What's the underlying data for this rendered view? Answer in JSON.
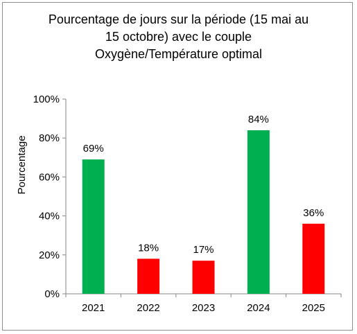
{
  "chart_data": {
    "type": "bar",
    "title_lines": [
      "Pourcentage de jours sur la période (15 mai au",
      "15 octobre) avec le couple",
      "Oxygène/Température optimal"
    ],
    "xlabel": "",
    "ylabel": "Pourcentage",
    "categories": [
      "2021",
      "2022",
      "2023",
      "2024",
      "2025"
    ],
    "values": [
      69,
      18,
      17,
      84,
      36
    ],
    "value_labels": [
      "69%",
      "18%",
      "17%",
      "84%",
      "36%"
    ],
    "bar_colors": [
      "#00b050",
      "#ff0000",
      "#ff0000",
      "#00b050",
      "#ff0000"
    ],
    "ylim": [
      0,
      100
    ],
    "yticks": [
      0,
      20,
      40,
      60,
      80,
      100
    ],
    "ytick_labels": [
      "0%",
      "20%",
      "40%",
      "60%",
      "80%",
      "100%"
    ],
    "grid": false,
    "legend": "none"
  }
}
